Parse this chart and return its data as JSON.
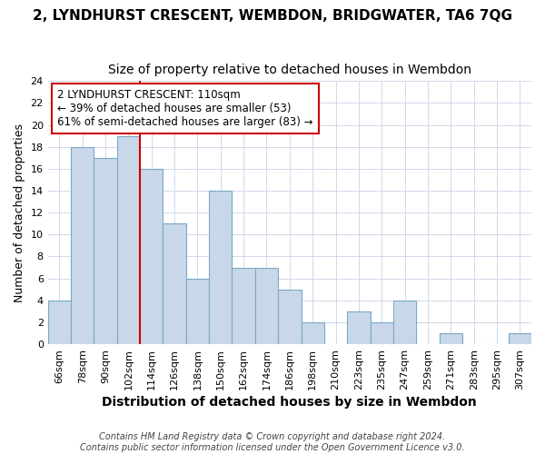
{
  "title": "2, LYNDHURST CRESCENT, WEMBDON, BRIDGWATER, TA6 7QG",
  "subtitle": "Size of property relative to detached houses in Wembdon",
  "xlabel": "Distribution of detached houses by size in Wembdon",
  "ylabel": "Number of detached properties",
  "bin_labels": [
    "66sqm",
    "78sqm",
    "90sqm",
    "102sqm",
    "114sqm",
    "126sqm",
    "138sqm",
    "150sqm",
    "162sqm",
    "174sqm",
    "186sqm",
    "198sqm",
    "210sqm",
    "223sqm",
    "235sqm",
    "247sqm",
    "259sqm",
    "271sqm",
    "283sqm",
    "295sqm",
    "307sqm"
  ],
  "bar_heights": [
    4,
    18,
    17,
    19,
    16,
    11,
    6,
    14,
    7,
    7,
    5,
    2,
    0,
    3,
    2,
    4,
    0,
    1,
    0,
    0,
    1
  ],
  "bar_color": "#c8d8e8",
  "bar_edge_color": "#7aa8c8",
  "vline_color": "#cc0000",
  "vline_x_index": 3.5,
  "annotation_line1": "2 LYNDHURST CRESCENT: 110sqm",
  "annotation_line2": "← 39% of detached houses are smaller (53)",
  "annotation_line3": "61% of semi-detached houses are larger (83) →",
  "annotation_box_color": "#ffffff",
  "annotation_box_edge": "#cc0000",
  "ylim": [
    0,
    24
  ],
  "yticks": [
    0,
    2,
    4,
    6,
    8,
    10,
    12,
    14,
    16,
    18,
    20,
    22,
    24
  ],
  "footer": "Contains HM Land Registry data © Crown copyright and database right 2024.\nContains public sector information licensed under the Open Government Licence v3.0.",
  "title_fontsize": 11,
  "subtitle_fontsize": 10,
  "xlabel_fontsize": 10,
  "ylabel_fontsize": 9,
  "tick_fontsize": 8,
  "footer_fontsize": 7,
  "annotation_fontsize": 8.5
}
